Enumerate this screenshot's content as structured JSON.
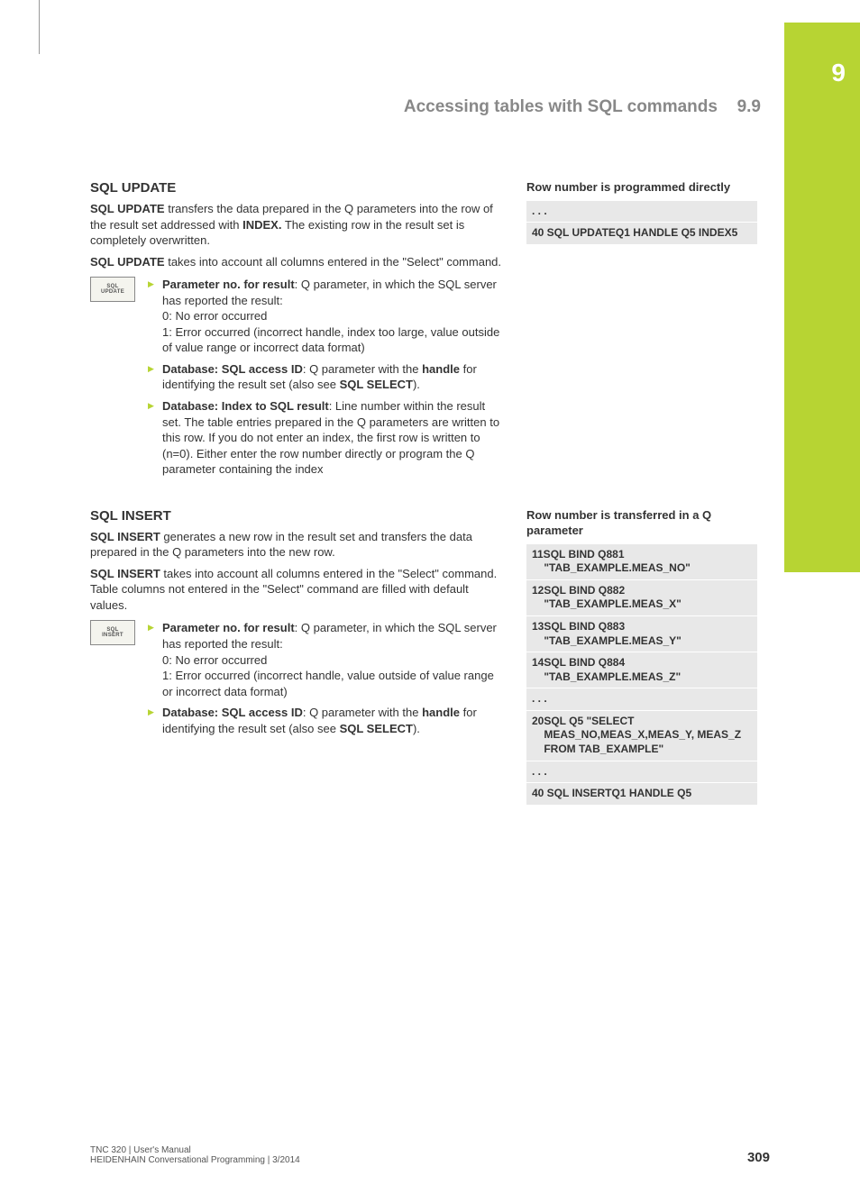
{
  "chapter_tab": "9",
  "header": {
    "title": "Accessing tables with SQL commands",
    "section_number": "9.9"
  },
  "sections": [
    {
      "heading": "SQL UPDATE",
      "softkey_label": "SQL UPDATE",
      "paragraphs": [
        "<b>SQL UPDATE</b> transfers the data prepared in the Q parameters into the row of the result set addressed with <b>INDEX.</b> The existing row in the result set is completely overwritten.",
        "<b>SQL UPDATE</b> takes into account all columns entered in the \"Select\" command."
      ],
      "bullets": [
        "<b>Parameter no. for result</b>: Q parameter, in which the SQL server has reported the result:<br>0: No error occurred<br>1: Error occurred (incorrect handle, index too large, value outside of value range or incorrect data format)",
        "<b>Database: SQL access ID</b>: Q parameter with the <b>handle</b> for identifying the result set (also see <b>SQL SELECT</b>).",
        "<b>Database: Index to SQL result</b>: Line number within the result set. The table entries prepared in the Q parameters are written to this row. If you do not enter an index, the first row is written to (n=0). Either enter the row number directly or program the Q parameter containing the index"
      ],
      "code_title": "Row number is programmed directly",
      "code_lines": [
        ". . .",
        "40 SQL UPDATEQ1 HANDLE Q5 INDEX5"
      ]
    },
    {
      "heading": "SQL INSERT",
      "softkey_label": "SQL INSERT",
      "paragraphs": [
        "<b>SQL INSERT</b> generates a new row in the result set and transfers the data prepared in the Q parameters into the new row.",
        "<b>SQL INSERT</b> takes into account all columns entered in the \"Select\" command. Table columns not entered in the \"Select\" command are filled with default values."
      ],
      "bullets": [
        "<b>Parameter no. for result</b>: Q parameter, in which the SQL server has reported the result:<br>0: No error occurred<br>1: Error occurred (incorrect handle, value outside of value range or incorrect data format)",
        "<b>Database: SQL access ID</b>: Q parameter with the <b>handle</b> for identifying the result set (also see <b>SQL SELECT</b>)."
      ],
      "code_title": "Row number is transferred in a Q parameter",
      "code_lines": [
        "11SQL BIND Q881<br>&nbsp;&nbsp;&nbsp;&nbsp;\"TAB_EXAMPLE.MEAS_NO\"",
        "12SQL BIND Q882<br>&nbsp;&nbsp;&nbsp;&nbsp;\"TAB_EXAMPLE.MEAS_X\"",
        "13SQL BIND Q883<br>&nbsp;&nbsp;&nbsp;&nbsp;\"TAB_EXAMPLE.MEAS_Y\"",
        "14SQL BIND Q884<br>&nbsp;&nbsp;&nbsp;&nbsp;\"TAB_EXAMPLE.MEAS_Z\"",
        ". . .",
        "20SQL Q5 \"SELECT<br>&nbsp;&nbsp;&nbsp;&nbsp;MEAS_NO,MEAS_X,MEAS_Y, MEAS_Z<br>&nbsp;&nbsp;&nbsp;&nbsp;FROM TAB_EXAMPLE\"",
        ". . .",
        "40 SQL INSERTQ1 HANDLE Q5"
      ]
    }
  ],
  "footer": {
    "line1": "TNC 320 | User's Manual",
    "line2": "HEIDENHAIN Conversational Programming | 3/2014",
    "page": "309"
  },
  "colors": {
    "accent": "#b7d433",
    "code_bg": "#e8e8e8",
    "text": "#333333",
    "muted": "#888888"
  }
}
